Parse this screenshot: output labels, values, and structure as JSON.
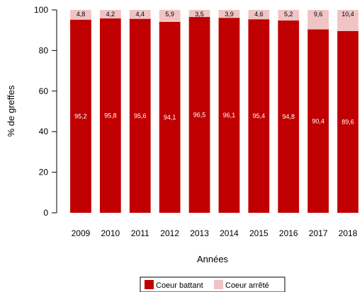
{
  "chart_data": {
    "type": "bar",
    "stacked": true,
    "categories": [
      "2009",
      "2010",
      "2011",
      "2012",
      "2013",
      "2014",
      "2015",
      "2016",
      "2017",
      "2018"
    ],
    "series": [
      {
        "name": "Coeur battant",
        "color": "#c00000",
        "values": [
          95.2,
          95.8,
          95.6,
          94.1,
          96.5,
          96.1,
          95.4,
          94.8,
          90.4,
          89.6
        ],
        "labels": [
          "95,2",
          "95,8",
          "95,6",
          "94,1",
          "96,5",
          "96,1",
          "95,4",
          "94,8",
          "90,4",
          "89,6"
        ],
        "label_color": "#ffffff"
      },
      {
        "name": "Coeur arrêté",
        "color": "#f0c4c4",
        "values": [
          4.8,
          4.2,
          4.4,
          5.9,
          3.5,
          3.9,
          4.6,
          5.2,
          9.6,
          10.4
        ],
        "labels": [
          "4,8",
          "4,2",
          "4,4",
          "5,9",
          "3,5",
          "3,9",
          "4,6",
          "5,2",
          "9,6",
          "10,4"
        ],
        "label_color": "#000000"
      }
    ],
    "xlabel": "Années",
    "ylabel": "% de greffes",
    "ylim": [
      0,
      100
    ],
    "yticks": [
      0,
      20,
      40,
      60,
      80,
      100
    ],
    "legend_position": "bottom"
  }
}
